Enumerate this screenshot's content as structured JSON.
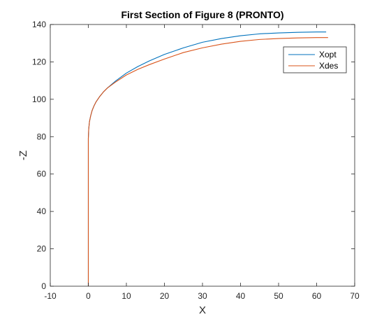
{
  "chart_data": {
    "type": "line",
    "title": "First Section of Figure 8 (PRONTO)",
    "xlabel": "X",
    "ylabel": "-Z",
    "xlim": [
      -10,
      70
    ],
    "ylim": [
      0,
      140
    ],
    "xticks": [
      -10,
      0,
      10,
      20,
      30,
      40,
      50,
      60,
      70
    ],
    "yticks": [
      0,
      20,
      40,
      60,
      80,
      100,
      120,
      140
    ],
    "grid": false,
    "legend_position": "top-right",
    "series": [
      {
        "name": "Xopt",
        "color": "#0072BD",
        "x": [
          0,
          0,
          0.1,
          0.3,
          0.6,
          1.0,
          1.5,
          2.0,
          3.0,
          4.0,
          5.0,
          7.0,
          10.0,
          13.0,
          16.0,
          20.0,
          25.0,
          30.0,
          35.0,
          40.0,
          45.0,
          50.0,
          55.0,
          60.0,
          62.5
        ],
        "y": [
          0,
          79,
          84,
          88,
          91,
          94,
          96.5,
          98.5,
          101.5,
          104,
          106,
          109.5,
          114,
          117.5,
          120.5,
          124,
          127.5,
          130.5,
          132.5,
          134,
          135,
          135.5,
          135.8,
          136,
          136
        ]
      },
      {
        "name": "Xdes",
        "color": "#D95319",
        "x": [
          0,
          0,
          0.1,
          0.3,
          0.6,
          1.0,
          1.5,
          2.0,
          3.0,
          4.0,
          5.0,
          7.0,
          10.0,
          13.0,
          16.0,
          20.0,
          25.0,
          30.0,
          35.0,
          40.0,
          45.0,
          50.0,
          55.0,
          60.0,
          63.0
        ],
        "y": [
          0,
          79,
          84,
          88,
          91,
          94,
          96.5,
          98.5,
          101.5,
          104,
          106,
          109,
          113,
          116,
          118.5,
          121.5,
          125,
          127.5,
          129.5,
          131,
          132,
          132.5,
          132.8,
          133,
          133
        ]
      }
    ]
  }
}
